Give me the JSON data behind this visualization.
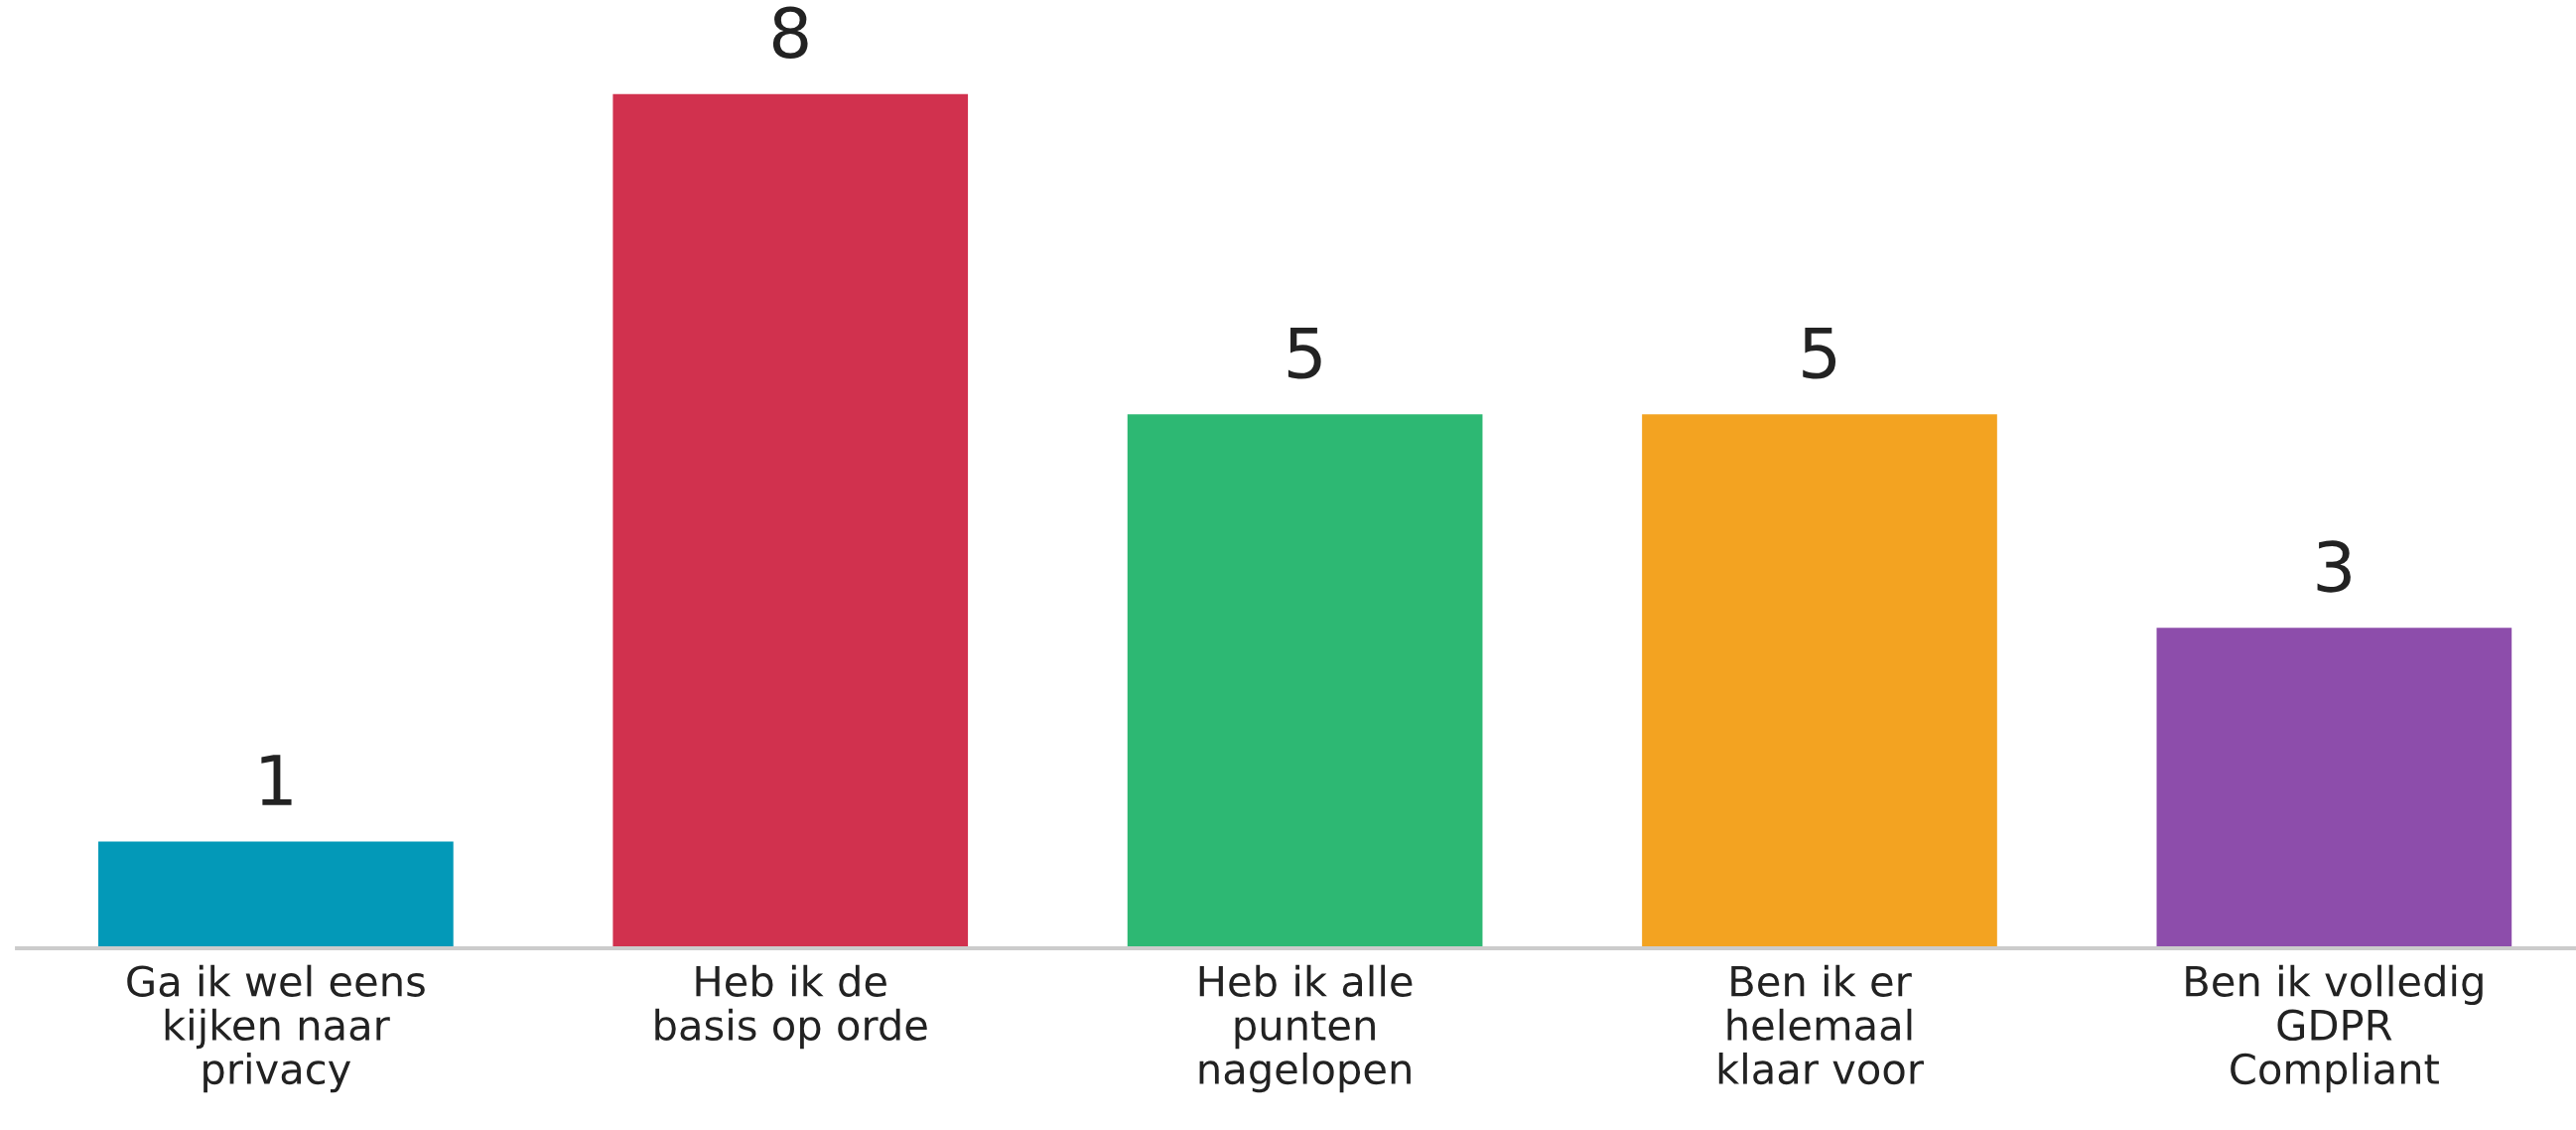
{
  "chart_data": {
    "type": "bar",
    "categories": [
      "Ga ik wel eens\nkijken naar\nprivacy",
      "Heb ik de\nbasis op orde",
      "Heb ik alle\npunten\nnagelopen",
      "Ben ik er\nhelemaal\nklaar voor",
      "Ben ik volledig\nGDPR\nCompliant"
    ],
    "values": [
      1,
      8,
      5,
      5,
      3
    ],
    "colors": [
      "#0399b8",
      "#d1314e",
      "#2db873",
      "#f3a321",
      "#8d4dab"
    ],
    "data_labels": true,
    "tick_labels": "x"
  }
}
